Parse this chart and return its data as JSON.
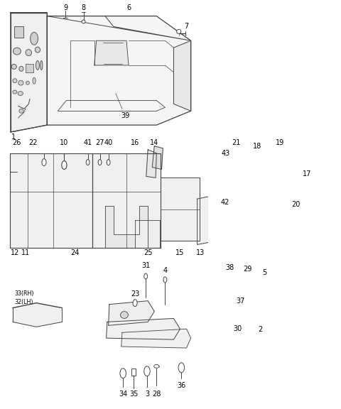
{
  "bg_color": "#ffffff",
  "line_color": "#444444",
  "text_color": "#000000",
  "fig_w": 4.8,
  "fig_h": 5.76
}
